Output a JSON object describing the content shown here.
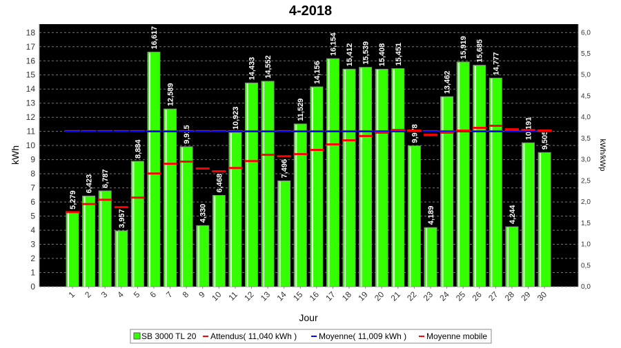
{
  "chart_data": {
    "type": "bar",
    "title": "4-2018",
    "xlabel": "Jour",
    "ylabel": "kWh",
    "y2label": "kWh/kWp",
    "ylim": [
      0,
      18.6
    ],
    "y2lim": [
      0,
      6.2
    ],
    "yticks": [
      0,
      1,
      2,
      3,
      4,
      5,
      6,
      7,
      8,
      9,
      10,
      11,
      12,
      13,
      14,
      15,
      16,
      17,
      18
    ],
    "y2ticks": [
      "0,0",
      "0,5",
      "1,0",
      "1,5",
      "2,0",
      "2,5",
      "3,0",
      "3,5",
      "4,0",
      "4,5",
      "5,0",
      "5,5",
      "6,0"
    ],
    "categories": [
      "1",
      "2",
      "3",
      "4",
      "5",
      "6",
      "7",
      "8",
      "9",
      "10",
      "11",
      "12",
      "13",
      "14",
      "15",
      "16",
      "17",
      "18",
      "19",
      "20",
      "21",
      "22",
      "23",
      "24",
      "25",
      "26",
      "27",
      "28",
      "29",
      "30"
    ],
    "series": [
      {
        "name": "SB 3000 TL 20",
        "type": "bar",
        "color": "#33ff00",
        "values": [
          5.279,
          6.423,
          6.787,
          3.957,
          8.884,
          16.617,
          12.589,
          9.915,
          4.33,
          6.468,
          10.923,
          14.433,
          14.552,
          7.496,
          11.529,
          14.156,
          16.154,
          15.412,
          15.539,
          15.408,
          15.451,
          9.978,
          4.189,
          13.462,
          15.919,
          15.685,
          14.777,
          4.244,
          10.191,
          9.505
        ],
        "labels": [
          "5,279",
          "6,423",
          "6,787",
          "3,957",
          "8,884",
          "16,617",
          "12,589",
          "9,915",
          "4,330",
          "6,468",
          "10,923",
          "14,433",
          "14,552",
          "7,496",
          "11,529",
          "14,156",
          "16,154",
          "15,412",
          "15,539",
          "15,408",
          "15,451",
          "9,978",
          "4,189",
          "13,462",
          "15,919",
          "15,685",
          "14,777",
          "4,244",
          "10,191",
          "9,505"
        ]
      },
      {
        "name": "Attendus( 11,040 kWh )",
        "type": "line",
        "color": "#ff0000",
        "value": 11.04
      },
      {
        "name": "Moyenne( 11,009 kWh )",
        "type": "line",
        "color": "#0000ff",
        "value": 11.009
      },
      {
        "name": "Moyenne mobile",
        "type": "marker",
        "color": "#ff0000",
        "values": [
          5.28,
          5.85,
          6.16,
          5.63,
          6.31,
          8.02,
          8.71,
          8.86,
          8.37,
          8.17,
          8.41,
          8.9,
          9.34,
          9.24,
          9.39,
          9.69,
          10.08,
          10.37,
          10.67,
          10.91,
          11.1,
          11.06,
          10.76,
          10.91,
          11.06,
          11.25,
          11.4,
          11.15,
          11.1,
          11.06
        ]
      }
    ],
    "legend_position": "bottom",
    "grid": true
  }
}
